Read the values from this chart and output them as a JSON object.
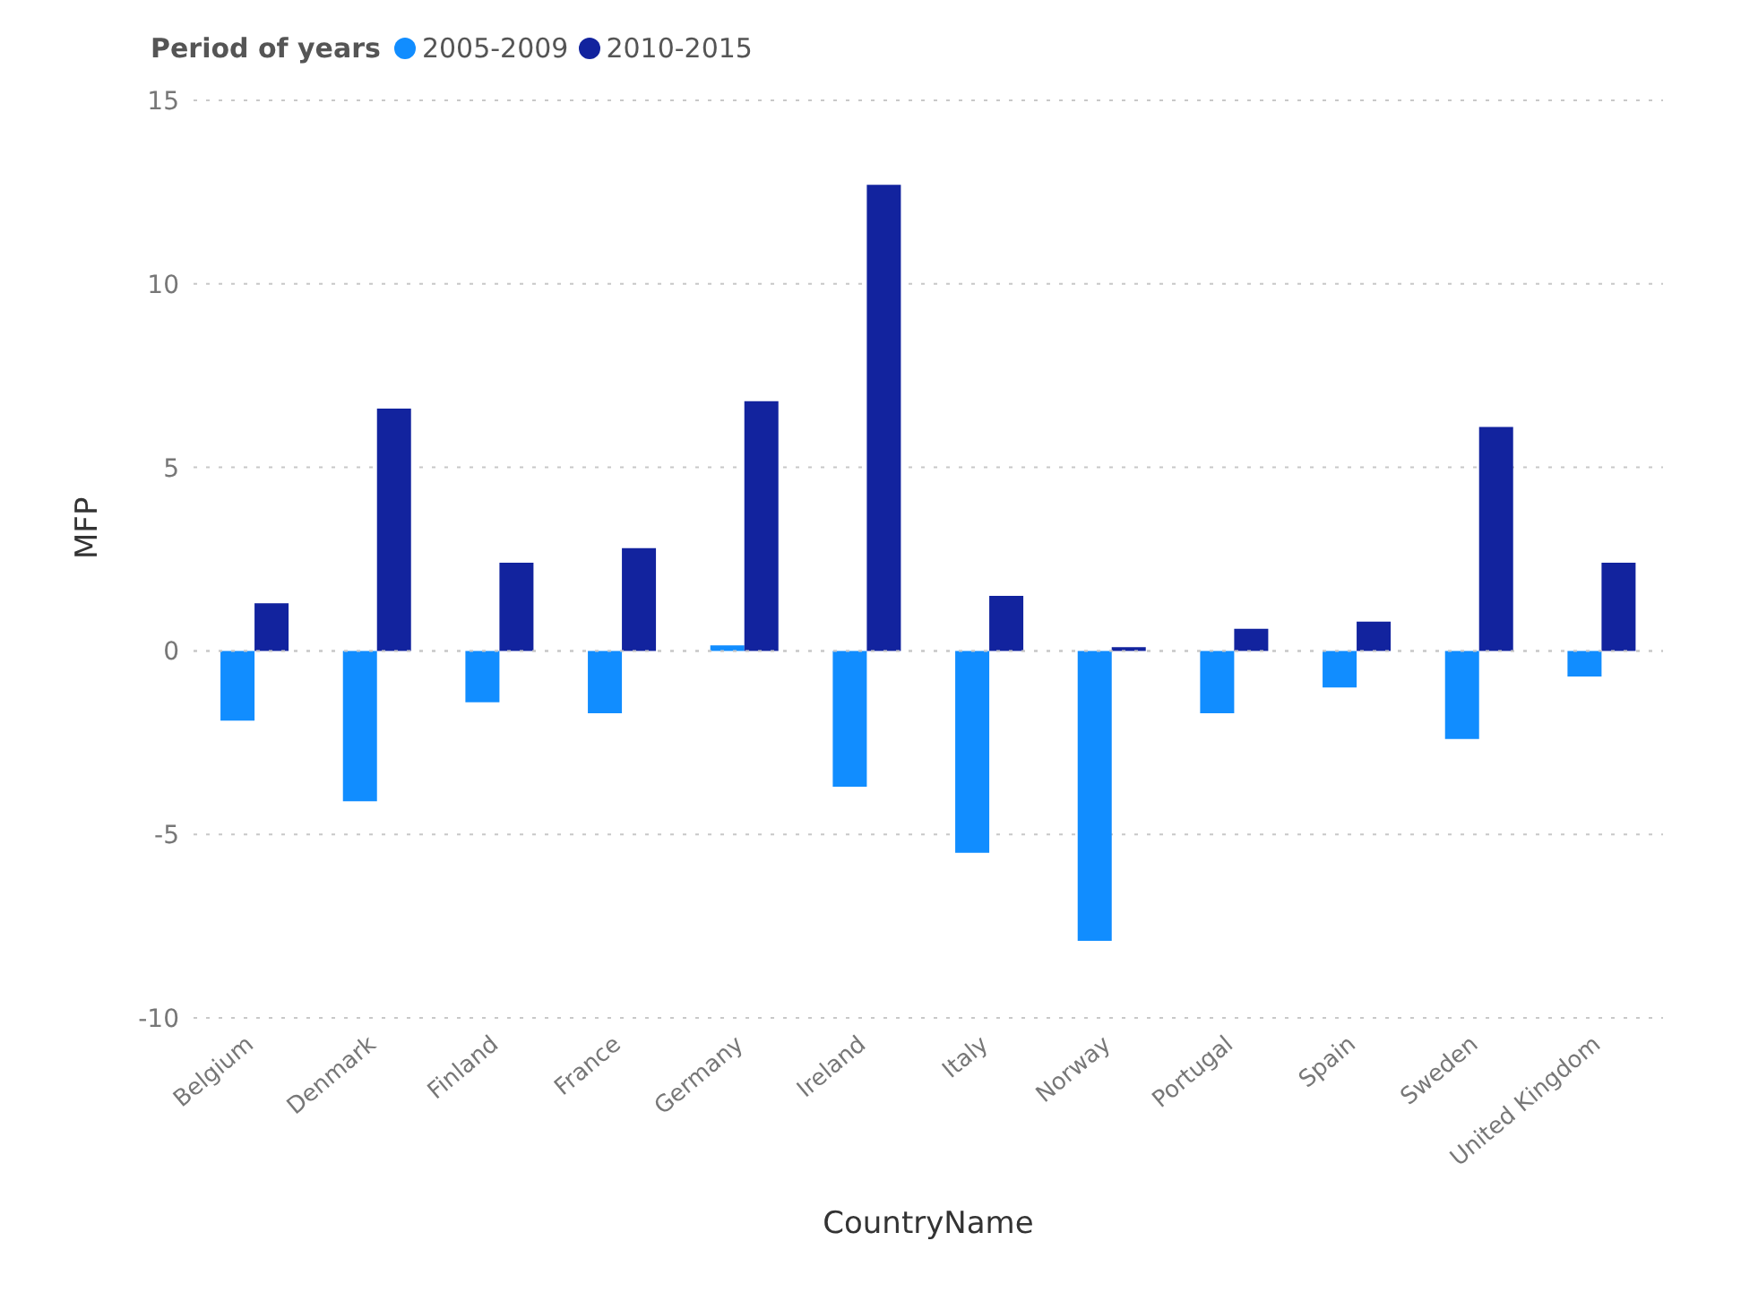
{
  "chart_data": {
    "type": "bar",
    "xlabel": "CountryName",
    "ylabel": "MFP",
    "legend_title": "Period of years",
    "legend": "top left",
    "grid": "y",
    "categories": [
      "Belgium",
      "Denmark",
      "Finland",
      "France",
      "Germany",
      "Ireland",
      "Italy",
      "Norway",
      "Portugal",
      "Spain",
      "Sweden",
      "United Kingdom"
    ],
    "ylim": [
      -10,
      15
    ],
    "yticks": [
      -10,
      -5,
      0,
      5,
      10,
      15
    ],
    "series": [
      {
        "name": "2005-2009",
        "color": "#118dff",
        "values": [
          -1.9,
          -4.1,
          -1.4,
          -1.7,
          0.15,
          -3.7,
          -5.5,
          -7.9,
          -1.7,
          -1.0,
          -2.4,
          -0.7
        ]
      },
      {
        "name": "2010-2015",
        "color": "#12239e",
        "values": [
          1.3,
          6.6,
          2.4,
          2.8,
          6.8,
          12.7,
          1.5,
          0.1,
          0.6,
          0.8,
          6.1,
          2.4
        ]
      }
    ]
  }
}
